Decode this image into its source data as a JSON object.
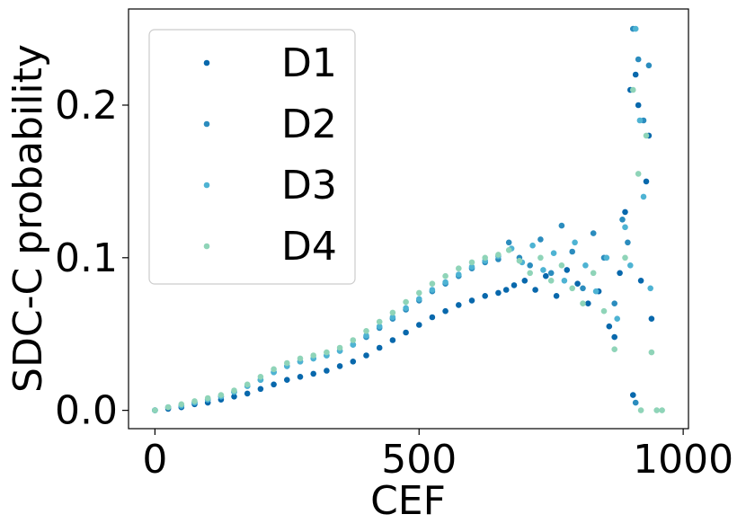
{
  "chart_data": {
    "type": "scatter",
    "title": "",
    "xlabel": "CEF",
    "ylabel": "SDC-C probability",
    "xlim": [
      -50,
      1010
    ],
    "ylim": [
      -0.012,
      0.263
    ],
    "xticks": [
      0,
      500,
      1000
    ],
    "xtick_labels": [
      "0",
      "500",
      "1000"
    ],
    "yticks": [
      0.0,
      0.1,
      0.2
    ],
    "ytick_labels": [
      "0.0",
      "0.1",
      "0.2"
    ],
    "grid": false,
    "legend_position": "top-left",
    "series": [
      {
        "name": "D1",
        "color": "#0868ac",
        "x": [
          0,
          25,
          50,
          75,
          100,
          125,
          150,
          175,
          200,
          225,
          250,
          275,
          300,
          325,
          350,
          375,
          400,
          425,
          450,
          475,
          500,
          525,
          550,
          575,
          600,
          625,
          650,
          665,
          680,
          700,
          720,
          740,
          760,
          780,
          800,
          820,
          840,
          860,
          870,
          880,
          890,
          900,
          905,
          910,
          915,
          920,
          930,
          935,
          940
        ],
        "y": [
          0.0,
          0.001,
          0.002,
          0.004,
          0.005,
          0.007,
          0.009,
          0.011,
          0.014,
          0.017,
          0.02,
          0.022,
          0.024,
          0.026,
          0.029,
          0.032,
          0.036,
          0.041,
          0.046,
          0.051,
          0.056,
          0.061,
          0.065,
          0.069,
          0.072,
          0.075,
          0.077,
          0.079,
          0.082,
          0.085,
          0.079,
          0.088,
          0.075,
          0.092,
          0.083,
          0.07,
          0.078,
          0.055,
          0.048,
          0.09,
          0.13,
          0.21,
          0.01,
          0.22,
          0.2,
          0.085,
          0.15,
          0.18,
          0.06
        ]
      },
      {
        "name": "D2",
        "color": "#2b8cbe",
        "x": [
          0,
          25,
          50,
          75,
          100,
          125,
          150,
          175,
          200,
          225,
          250,
          275,
          300,
          325,
          350,
          375,
          400,
          425,
          450,
          475,
          500,
          525,
          550,
          575,
          600,
          625,
          650,
          670,
          690,
          710,
          730,
          750,
          770,
          790,
          810,
          830,
          850,
          870,
          885,
          895,
          905,
          910,
          915,
          925,
          935
        ],
        "y": [
          0.0,
          0.002,
          0.003,
          0.005,
          0.007,
          0.009,
          0.012,
          0.016,
          0.02,
          0.025,
          0.029,
          0.032,
          0.034,
          0.036,
          0.039,
          0.043,
          0.048,
          0.054,
          0.06,
          0.066,
          0.072,
          0.078,
          0.083,
          0.088,
          0.093,
          0.097,
          0.099,
          0.11,
          0.1,
          0.095,
          0.112,
          0.09,
          0.121,
          0.104,
          0.08,
          0.116,
          0.1,
          0.07,
          0.125,
          0.11,
          0.25,
          0.005,
          0.23,
          0.19,
          0.226
        ]
      },
      {
        "name": "D3",
        "color": "#4eb3d3",
        "x": [
          0,
          25,
          50,
          75,
          100,
          125,
          150,
          175,
          200,
          225,
          250,
          275,
          300,
          325,
          350,
          375,
          400,
          425,
          450,
          475,
          500,
          525,
          550,
          575,
          600,
          625,
          650,
          675,
          695,
          715,
          735,
          755,
          775,
          795,
          815,
          835,
          855,
          875,
          890,
          900,
          910,
          918,
          925,
          938
        ],
        "y": [
          0.0,
          0.002,
          0.003,
          0.005,
          0.007,
          0.009,
          0.012,
          0.016,
          0.02,
          0.025,
          0.029,
          0.032,
          0.034,
          0.036,
          0.039,
          0.043,
          0.049,
          0.055,
          0.061,
          0.067,
          0.073,
          0.079,
          0.084,
          0.089,
          0.094,
          0.098,
          0.101,
          0.106,
          0.097,
          0.108,
          0.092,
          0.103,
          0.085,
          0.11,
          0.095,
          0.078,
          0.1,
          0.06,
          0.12,
          0.095,
          0.25,
          0.19,
          0.14,
          0.08
        ]
      },
      {
        "name": "D4",
        "color": "#8fd4b8",
        "x": [
          0,
          25,
          50,
          75,
          100,
          125,
          150,
          175,
          200,
          225,
          250,
          275,
          300,
          325,
          350,
          375,
          400,
          425,
          450,
          475,
          500,
          525,
          550,
          575,
          600,
          625,
          650,
          670,
          690,
          710,
          730,
          750,
          770,
          790,
          810,
          830,
          850,
          870,
          890,
          905,
          915,
          920,
          930,
          940,
          950,
          960
        ],
        "y": [
          0.0,
          0.002,
          0.004,
          0.006,
          0.008,
          0.01,
          0.013,
          0.017,
          0.022,
          0.027,
          0.031,
          0.034,
          0.036,
          0.038,
          0.041,
          0.046,
          0.052,
          0.058,
          0.064,
          0.071,
          0.077,
          0.083,
          0.088,
          0.093,
          0.097,
          0.1,
          0.102,
          0.105,
          0.098,
          0.09,
          0.1,
          0.085,
          0.095,
          0.08,
          0.07,
          0.09,
          0.065,
          0.04,
          0.1,
          0.21,
          0.155,
          0.0,
          0.18,
          0.038,
          0.0,
          0.0
        ]
      }
    ]
  }
}
